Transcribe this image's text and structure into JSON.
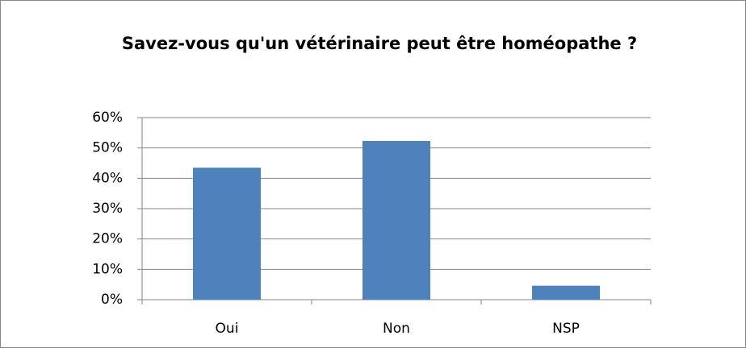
{
  "chart_data": {
    "type": "bar",
    "title": "Savez-vous qu'un vétérinaire peut être homéopathe ?",
    "categories": [
      "Oui",
      "Non",
      "NSP"
    ],
    "values": [
      43.5,
      52.3,
      4.6
    ],
    "color": "#4f81bd",
    "ylim": [
      0,
      60
    ],
    "yticks": [
      {
        "value": 0,
        "label": "0%"
      },
      {
        "value": 10,
        "label": "10%"
      },
      {
        "value": 20,
        "label": "20%"
      },
      {
        "value": 30,
        "label": "30%"
      },
      {
        "value": 40,
        "label": "40%"
      },
      {
        "value": 50,
        "label": "50%"
      },
      {
        "value": 60,
        "label": "60%"
      }
    ],
    "grid": true
  }
}
